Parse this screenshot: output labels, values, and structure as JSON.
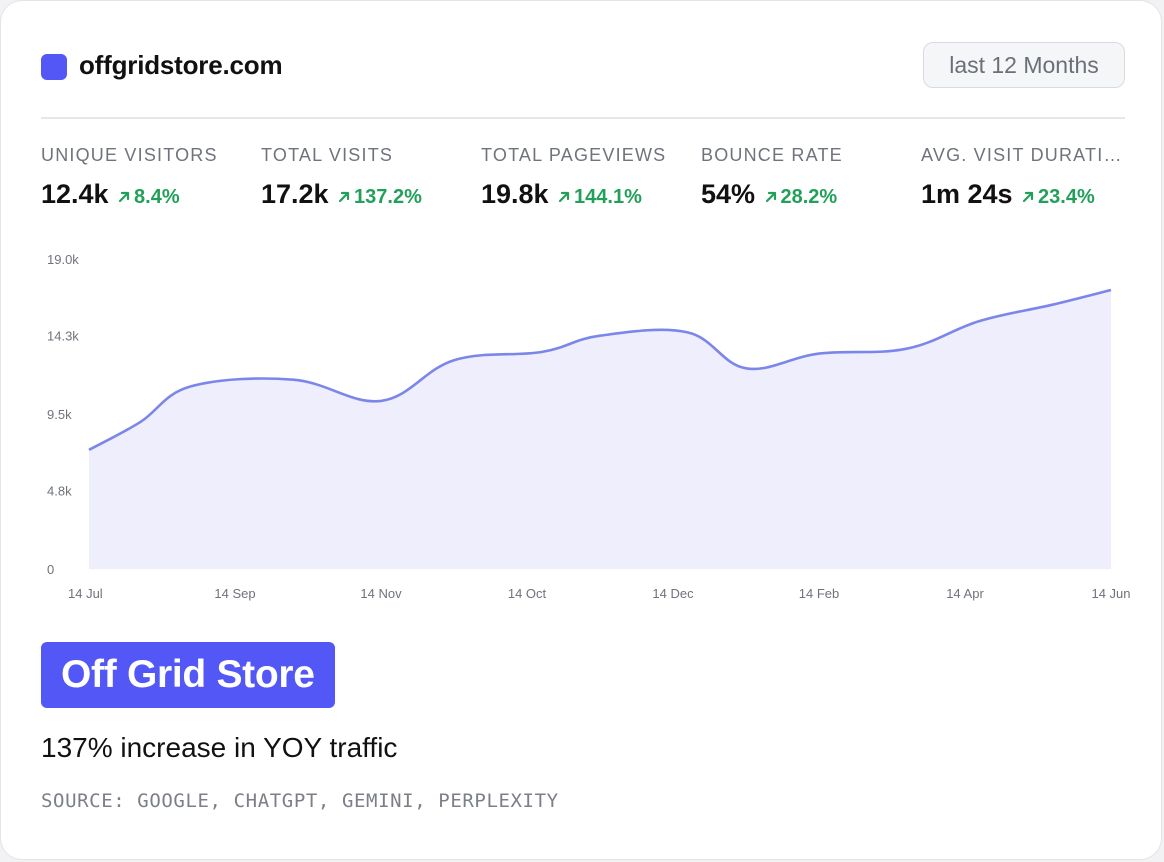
{
  "colors": {
    "accent": "#5257f5",
    "positive": "#22a05a",
    "line": "#7b86ea",
    "area": "#eeeefc"
  },
  "header": {
    "site_name": "offgridstore.com",
    "range_button": "last 12 Months"
  },
  "metrics": [
    {
      "label": "UNIQUE VISITORS",
      "value": "12.4k",
      "change": "8.4%"
    },
    {
      "label": "TOTAL VISITS",
      "value": "17.2k",
      "change": "137.2%"
    },
    {
      "label": "TOTAL PAGEVIEWS",
      "value": "19.8k",
      "change": "144.1%"
    },
    {
      "label": "BOUNCE RATE",
      "value": "54%",
      "change": "28.2%"
    },
    {
      "label": "AVG. VISIT DURATION",
      "value": "1m 24s",
      "change": "23.4%"
    }
  ],
  "chart_data": {
    "type": "area",
    "x_ticks": [
      "14 Jul",
      "14 Sep",
      "14 Nov",
      "14 Oct",
      "14 Dec",
      "14 Feb",
      "14 Apr",
      "14 Jun"
    ],
    "y_ticks": [
      "0",
      "4.8k",
      "9.5k",
      "14.3k",
      "19.0k"
    ],
    "ylim": [
      0,
      19000
    ],
    "points": [
      {
        "x": 0.0,
        "y": 7300
      },
      {
        "x": 0.35,
        "y": 9000
      },
      {
        "x": 0.7,
        "y": 11200
      },
      {
        "x": 1.4,
        "y": 11600
      },
      {
        "x": 2.0,
        "y": 10300
      },
      {
        "x": 2.5,
        "y": 12800
      },
      {
        "x": 3.1,
        "y": 13300
      },
      {
        "x": 3.5,
        "y": 14300
      },
      {
        "x": 4.1,
        "y": 14500
      },
      {
        "x": 4.5,
        "y": 12300
      },
      {
        "x": 5.0,
        "y": 13200
      },
      {
        "x": 5.6,
        "y": 13500
      },
      {
        "x": 6.1,
        "y": 15200
      },
      {
        "x": 6.6,
        "y": 16200
      },
      {
        "x": 7.0,
        "y": 17100
      }
    ],
    "grid": false,
    "legend": "none"
  },
  "brand": {
    "badge": "Off Grid Store",
    "headline": "137% increase in YOY traffic",
    "source": "SOURCE: GOOGLE, CHATGPT, GEMINI, PERPLEXITY"
  }
}
